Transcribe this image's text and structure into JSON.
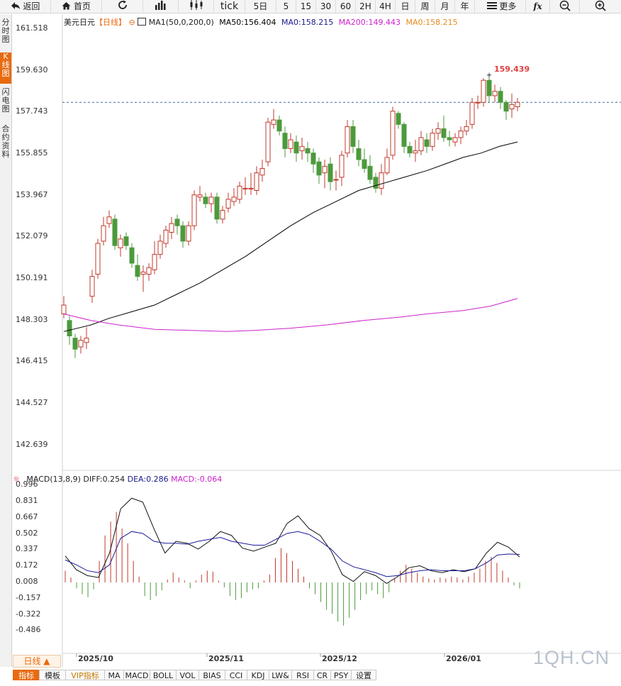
{
  "toolbar": {
    "back": "返回",
    "home": "首页",
    "tick": "tick",
    "periods": [
      "5日",
      "5",
      "15",
      "30",
      "60",
      "2H",
      "4H",
      "日",
      "周",
      "月",
      "年"
    ],
    "more": "更多",
    "fx": "fx"
  },
  "side_tabs": [
    "分时图",
    "K线图",
    "闪电图",
    "合约资料"
  ],
  "side_active": 1,
  "legend": {
    "symbol": "美元日元",
    "period": "【日线】",
    "ma_params": "MA1(50,0,200,0)",
    "ma50": "MA50:156.404",
    "ma0a": "MA0:158.215",
    "ma200": "MA200:149.443",
    "ma0b": "MA0:158.215",
    "colors": {
      "ma50": "#000000",
      "ma0a": "#1a1a8c",
      "ma200": "#cc22cc",
      "ma0b": "#e88a1a"
    }
  },
  "price_axis": [
    "161.518",
    "159.630",
    "157.743",
    "155.855",
    "153.967",
    "152.079",
    "150.191",
    "148.303",
    "146.415",
    "144.527",
    "142.639"
  ],
  "max_label": "159.439",
  "macd_legend": {
    "name": "MACD(13,8,9)",
    "diff": "DIFF:0.254",
    "dea": "DEA:0.286",
    "macd": "MACD:-0.064"
  },
  "macd_axis": [
    "0.996",
    "0.831",
    "0.667",
    "0.502",
    "0.337",
    "0.172",
    "0.008",
    "-0.157",
    "-0.322",
    "-0.486"
  ],
  "x_axis": [
    "2025/10",
    "2025/11",
    "2025/12",
    "2026/01"
  ],
  "bottom_period": "日线 ▲",
  "watermark": "1QH.CN",
  "bottom_tabs": [
    "指标",
    "模板",
    "VIP指标",
    "MA",
    "MACD",
    "BOLL",
    "VOL",
    "BIAS",
    "CCI",
    "KDJ",
    "LW&",
    "RSI",
    "CR",
    "PSY",
    "设置"
  ],
  "chart_data": {
    "type": "candlestick",
    "title": "美元日元【日线】",
    "ylim": [
      141.5,
      162.2
    ],
    "current_price": 158.2,
    "max_point": {
      "value": 159.439
    },
    "candles": [
      [
        148.6,
        149.0,
        148.4,
        149.4
      ],
      [
        148.3,
        147.6,
        147.2,
        148.5
      ],
      [
        147.5,
        147.0,
        146.6,
        147.7
      ],
      [
        147.1,
        147.4,
        146.8,
        147.6
      ],
      [
        147.3,
        147.5,
        147.0,
        148.0
      ],
      [
        149.4,
        150.3,
        149.1,
        150.6
      ],
      [
        150.4,
        151.8,
        150.2,
        152.0
      ],
      [
        151.9,
        152.6,
        151.7,
        153.0
      ],
      [
        152.7,
        153.0,
        152.5,
        153.3
      ],
      [
        152.9,
        151.7,
        151.5,
        153.1
      ],
      [
        151.6,
        152.0,
        151.2,
        152.2
      ],
      [
        152.1,
        151.7,
        151.5,
        152.3
      ],
      [
        151.6,
        150.9,
        150.7,
        151.8
      ],
      [
        150.8,
        150.3,
        150.1,
        151.3
      ],
      [
        150.4,
        150.5,
        149.6,
        150.8
      ],
      [
        150.4,
        150.7,
        150.1,
        150.9
      ],
      [
        150.6,
        151.3,
        150.4,
        151.9
      ],
      [
        151.3,
        151.9,
        151.1,
        152.2
      ],
      [
        151.8,
        152.4,
        151.6,
        152.6
      ],
      [
        152.3,
        152.7,
        152.0,
        153.0
      ],
      [
        152.9,
        152.6,
        152.2,
        153.1
      ],
      [
        152.6,
        151.9,
        151.6,
        152.8
      ],
      [
        151.9,
        152.6,
        151.7,
        152.8
      ],
      [
        152.6,
        154.0,
        152.4,
        154.2
      ],
      [
        153.9,
        154.0,
        153.7,
        154.4
      ],
      [
        153.9,
        153.6,
        153.4,
        154.1
      ],
      [
        153.6,
        153.9,
        153.2,
        154.1
      ],
      [
        153.9,
        152.9,
        152.7,
        154.1
      ],
      [
        152.9,
        153.3,
        152.7,
        153.5
      ],
      [
        153.4,
        153.8,
        153.2,
        154.1
      ],
      [
        153.7,
        153.9,
        153.5,
        154.3
      ],
      [
        153.8,
        154.4,
        153.6,
        154.6
      ],
      [
        154.3,
        154.3,
        154.0,
        154.8
      ],
      [
        154.3,
        154.3,
        154.0,
        155.0
      ],
      [
        154.2,
        155.0,
        154.0,
        155.3
      ],
      [
        154.9,
        155.2,
        154.6,
        155.6
      ],
      [
        155.5,
        157.3,
        155.3,
        157.5
      ],
      [
        157.2,
        157.4,
        157.0,
        157.9
      ],
      [
        157.4,
        156.9,
        156.7,
        157.6
      ],
      [
        156.8,
        156.1,
        155.7,
        157.1
      ],
      [
        156.1,
        156.5,
        155.9,
        156.8
      ],
      [
        156.4,
        155.9,
        155.5,
        156.7
      ],
      [
        156.0,
        156.2,
        155.6,
        156.6
      ],
      [
        156.1,
        155.9,
        155.5,
        156.4
      ],
      [
        155.9,
        155.4,
        155.0,
        156.1
      ],
      [
        155.5,
        154.9,
        154.5,
        155.7
      ],
      [
        155.0,
        155.3,
        154.3,
        155.6
      ],
      [
        155.4,
        154.6,
        154.2,
        155.7
      ],
      [
        154.7,
        154.7,
        154.2,
        155.1
      ],
      [
        154.8,
        155.8,
        154.4,
        156.0
      ],
      [
        155.9,
        157.1,
        155.7,
        157.4
      ],
      [
        157.1,
        156.2,
        155.9,
        157.4
      ],
      [
        156.1,
        155.6,
        155.3,
        156.5
      ],
      [
        155.6,
        155.2,
        155.0,
        156.1
      ],
      [
        155.3,
        154.7,
        154.5,
        155.8
      ],
      [
        154.8,
        154.3,
        154.1,
        155.0
      ],
      [
        154.3,
        155.0,
        154.0,
        155.4
      ],
      [
        155.0,
        155.7,
        154.9,
        156.1
      ],
      [
        155.8,
        157.8,
        155.6,
        158.0
      ],
      [
        157.7,
        157.2,
        157.0,
        157.8
      ],
      [
        157.2,
        156.2,
        155.9,
        157.3
      ],
      [
        156.2,
        155.9,
        155.7,
        156.4
      ],
      [
        155.9,
        156.0,
        155.5,
        156.5
      ],
      [
        156.0,
        156.6,
        155.8,
        156.9
      ],
      [
        156.5,
        156.2,
        155.9,
        156.8
      ],
      [
        156.2,
        156.8,
        156.0,
        157.0
      ],
      [
        156.8,
        157.0,
        156.5,
        157.3
      ],
      [
        157.0,
        156.6,
        156.4,
        157.6
      ],
      [
        156.6,
        156.5,
        156.2,
        156.9
      ],
      [
        156.4,
        156.6,
        156.2,
        156.8
      ],
      [
        156.6,
        156.9,
        156.3,
        157.1
      ],
      [
        156.9,
        157.1,
        156.7,
        157.4
      ],
      [
        157.2,
        158.2,
        157.0,
        158.4
      ],
      [
        158.2,
        158.2,
        157.9,
        158.5
      ],
      [
        158.2,
        159.2,
        158.0,
        159.3
      ],
      [
        159.2,
        158.5,
        158.2,
        159.4
      ],
      [
        158.5,
        158.7,
        158.2,
        159.0
      ],
      [
        158.7,
        158.2,
        157.9,
        158.9
      ],
      [
        158.2,
        157.8,
        157.4,
        158.3
      ],
      [
        157.9,
        158.1,
        157.5,
        158.6
      ],
      [
        158.0,
        158.2,
        157.8,
        158.4
      ]
    ],
    "ma50": [
      [
        0,
        147.8
      ],
      [
        6,
        148.1
      ],
      [
        10,
        148.4
      ],
      [
        15,
        148.7
      ],
      [
        20,
        149.0
      ],
      [
        25,
        149.5
      ],
      [
        30,
        150.0
      ],
      [
        35,
        150.6
      ],
      [
        40,
        151.2
      ],
      [
        45,
        151.9
      ],
      [
        50,
        152.6
      ],
      [
        55,
        153.2
      ],
      [
        60,
        153.7
      ],
      [
        65,
        154.2
      ],
      [
        70,
        154.5
      ],
      [
        75,
        154.8
      ],
      [
        80,
        155.1
      ],
      [
        84,
        155.4
      ],
      [
        88,
        155.7
      ],
      [
        92,
        155.9
      ],
      [
        96,
        156.2
      ],
      [
        100,
        156.4
      ]
    ],
    "ma200": [
      [
        0,
        148.6
      ],
      [
        6,
        148.3
      ],
      [
        12,
        148.1
      ],
      [
        20,
        147.9
      ],
      [
        28,
        147.85
      ],
      [
        36,
        147.8
      ],
      [
        42,
        147.85
      ],
      [
        50,
        147.95
      ],
      [
        58,
        148.1
      ],
      [
        66,
        148.3
      ],
      [
        74,
        148.45
      ],
      [
        80,
        148.6
      ],
      [
        88,
        148.75
      ],
      [
        94,
        148.95
      ],
      [
        100,
        149.3
      ]
    ],
    "macd": {
      "ylim": [
        -0.55,
        1.05
      ],
      "diff": [
        [
          0,
          0.27
        ],
        [
          3,
          0.13
        ],
        [
          6,
          0.07
        ],
        [
          9,
          0.05
        ],
        [
          12,
          0.3
        ],
        [
          15,
          0.75
        ],
        [
          18,
          0.86
        ],
        [
          21,
          0.82
        ],
        [
          24,
          0.55
        ],
        [
          27,
          0.3
        ],
        [
          30,
          0.42
        ],
        [
          33,
          0.4
        ],
        [
          36,
          0.34
        ],
        [
          39,
          0.42
        ],
        [
          42,
          0.52
        ],
        [
          45,
          0.48
        ],
        [
          48,
          0.35
        ],
        [
          51,
          0.32
        ],
        [
          54,
          0.36
        ],
        [
          57,
          0.4
        ],
        [
          60,
          0.6
        ],
        [
          63,
          0.68
        ],
        [
          66,
          0.55
        ],
        [
          69,
          0.48
        ],
        [
          72,
          0.32
        ],
        [
          75,
          0.08
        ],
        [
          78,
          0.01
        ],
        [
          81,
          0.11
        ],
        [
          84,
          0.07
        ],
        [
          87,
          -0.01
        ],
        [
          90,
          0.06
        ],
        [
          93,
          0.15
        ],
        [
          96,
          0.17
        ],
        [
          99,
          0.12
        ],
        [
          102,
          0.1
        ],
        [
          105,
          0.13
        ],
        [
          108,
          0.11
        ],
        [
          111,
          0.14
        ],
        [
          114,
          0.3
        ],
        [
          117,
          0.41
        ],
        [
          120,
          0.36
        ],
        [
          123,
          0.26
        ]
      ],
      "dea": [
        [
          0,
          0.23
        ],
        [
          3,
          0.18
        ],
        [
          6,
          0.12
        ],
        [
          9,
          0.1
        ],
        [
          12,
          0.18
        ],
        [
          15,
          0.45
        ],
        [
          18,
          0.52
        ],
        [
          21,
          0.5
        ],
        [
          24,
          0.42
        ],
        [
          27,
          0.4
        ],
        [
          30,
          0.4
        ],
        [
          33,
          0.39
        ],
        [
          36,
          0.42
        ],
        [
          39,
          0.44
        ],
        [
          42,
          0.46
        ],
        [
          45,
          0.42
        ],
        [
          48,
          0.4
        ],
        [
          51,
          0.38
        ],
        [
          54,
          0.38
        ],
        [
          57,
          0.44
        ],
        [
          60,
          0.5
        ],
        [
          63,
          0.52
        ],
        [
          66,
          0.49
        ],
        [
          69,
          0.42
        ],
        [
          72,
          0.34
        ],
        [
          75,
          0.22
        ],
        [
          78,
          0.16
        ],
        [
          81,
          0.13
        ],
        [
          84,
          0.1
        ],
        [
          87,
          0.06
        ],
        [
          90,
          0.07
        ],
        [
          93,
          0.1
        ],
        [
          96,
          0.12
        ],
        [
          99,
          0.13
        ],
        [
          102,
          0.12
        ],
        [
          105,
          0.12
        ],
        [
          108,
          0.12
        ],
        [
          111,
          0.14
        ],
        [
          114,
          0.2
        ],
        [
          117,
          0.28
        ],
        [
          120,
          0.29
        ],
        [
          123,
          0.286
        ]
      ],
      "hist": [
        [
          0,
          0.12
        ],
        [
          2,
          0.05
        ],
        [
          4,
          -0.06
        ],
        [
          6,
          -0.12
        ],
        [
          8,
          -0.15
        ],
        [
          10,
          -0.07
        ],
        [
          12,
          0.22
        ],
        [
          14,
          0.48
        ],
        [
          16,
          0.62
        ],
        [
          18,
          0.72
        ],
        [
          20,
          0.55
        ],
        [
          22,
          0.4
        ],
        [
          24,
          0.22
        ],
        [
          26,
          0.06
        ],
        [
          28,
          -0.14
        ],
        [
          30,
          -0.18
        ],
        [
          32,
          -0.14
        ],
        [
          34,
          -0.08
        ],
        [
          36,
          0.03
        ],
        [
          38,
          0.1
        ],
        [
          40,
          0.05
        ],
        [
          42,
          0.02
        ],
        [
          44,
          -0.06
        ],
        [
          46,
          0.02
        ],
        [
          48,
          0.08
        ],
        [
          50,
          0.12
        ],
        [
          52,
          0.11
        ],
        [
          54,
          0.02
        ],
        [
          56,
          -0.05
        ],
        [
          58,
          -0.14
        ],
        [
          60,
          -0.18
        ],
        [
          62,
          -0.16
        ],
        [
          64,
          -0.1
        ],
        [
          66,
          -0.07
        ],
        [
          68,
          -0.06
        ],
        [
          70,
          0.02
        ],
        [
          72,
          0.08
        ],
        [
          74,
          0.25
        ],
        [
          76,
          0.35
        ],
        [
          78,
          0.3
        ],
        [
          80,
          0.22
        ],
        [
          82,
          0.14
        ],
        [
          84,
          0.06
        ],
        [
          86,
          -0.06
        ],
        [
          88,
          -0.12
        ],
        [
          90,
          -0.2
        ],
        [
          92,
          -0.28
        ],
        [
          94,
          -0.32
        ],
        [
          96,
          -0.4
        ],
        [
          98,
          -0.44
        ],
        [
          100,
          -0.36
        ],
        [
          102,
          -0.28
        ],
        [
          104,
          -0.18
        ],
        [
          106,
          -0.12
        ],
        [
          108,
          -0.08
        ],
        [
          110,
          -0.12
        ],
        [
          112,
          -0.16
        ],
        [
          114,
          -0.1
        ],
        [
          116,
          0.04
        ],
        [
          118,
          0.12
        ],
        [
          120,
          0.18
        ],
        [
          122,
          0.14
        ],
        [
          124,
          0.1
        ],
        [
          126,
          0.06
        ],
        [
          128,
          0.04
        ],
        [
          130,
          0.03
        ],
        [
          132,
          0.05
        ],
        [
          134,
          0.04
        ],
        [
          136,
          0.06
        ],
        [
          138,
          0.05
        ],
        [
          140,
          0.03
        ],
        [
          142,
          0.06
        ],
        [
          144,
          0.1
        ],
        [
          146,
          0.14
        ],
        [
          148,
          0.22
        ],
        [
          150,
          0.26
        ],
        [
          152,
          0.2
        ],
        [
          154,
          0.12
        ],
        [
          156,
          0.05
        ],
        [
          158,
          -0.03
        ],
        [
          160,
          -0.06
        ]
      ]
    }
  }
}
